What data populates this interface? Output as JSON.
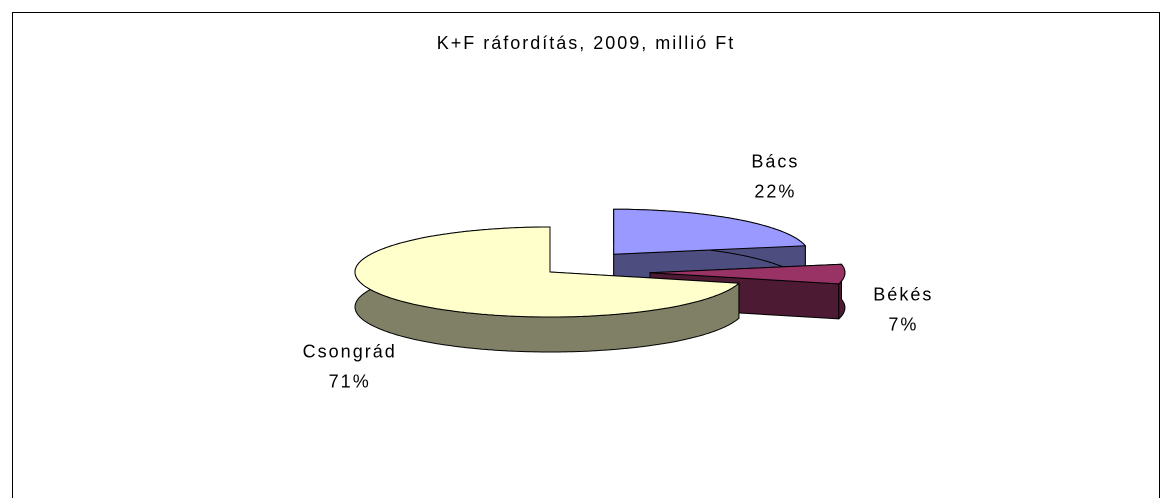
{
  "chart_data": {
    "type": "pie3d",
    "title": "K+F ráfordítás, 2009, millió Ft",
    "categories": [
      "Bács",
      "Békés",
      "Csongrád"
    ],
    "values": [
      22,
      7,
      71
    ],
    "value_labels": [
      "22%",
      "7%",
      "71%"
    ],
    "colors": [
      "#9999ff",
      "#993366",
      "#ffffcc"
    ]
  }
}
